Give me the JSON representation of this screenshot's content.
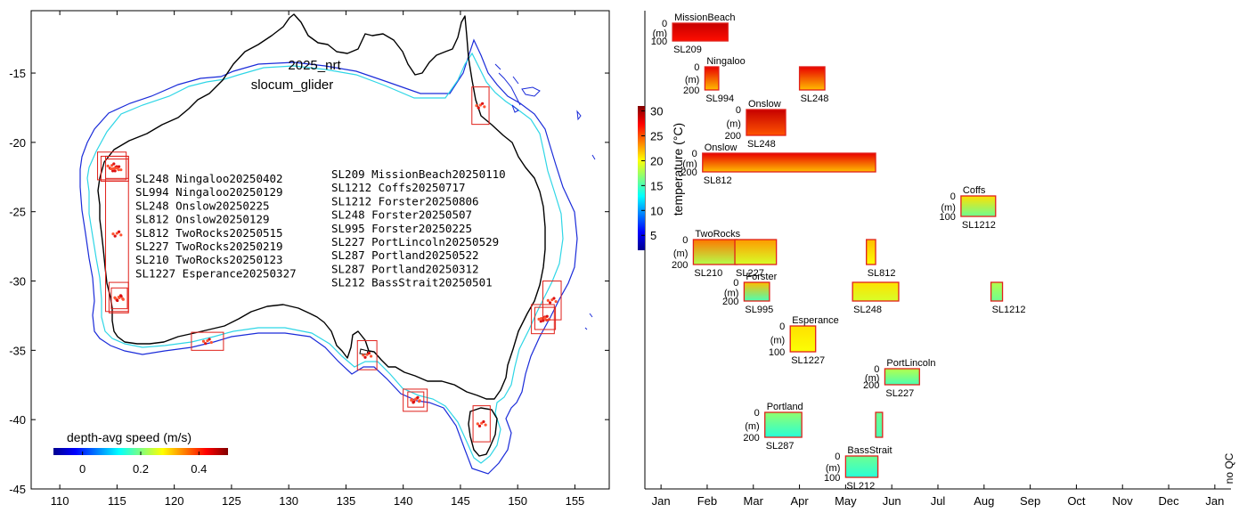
{
  "chart_data": [
    {
      "type": "map",
      "title_lines": [
        "2025_nrt",
        "slocum_glider"
      ],
      "x_ticks": [
        "110",
        "115",
        "120",
        "125",
        "130",
        "135",
        "140",
        "145",
        "150",
        "155"
      ],
      "x_tick_values": [
        110,
        115,
        120,
        125,
        130,
        135,
        140,
        145,
        150,
        155
      ],
      "y_ticks": [
        "-15",
        "-20",
        "-25",
        "-30",
        "-35",
        "-40",
        "-45"
      ],
      "y_tick_values": [
        -15,
        -20,
        -25,
        -30,
        -35,
        -40,
        -45
      ],
      "xlim": [
        107.5,
        158
      ],
      "ylim": [
        -45,
        -10.5
      ],
      "colorbar": {
        "label": "depth-avg speed (m/s)",
        "ticks": [
          "0",
          "0.2",
          "0.4"
        ],
        "tick_values": [
          0,
          0.2,
          0.4
        ],
        "range": [
          -0.1,
          0.5
        ],
        "cmap": "jet"
      },
      "legend_left": [
        "SL248 Ningaloo20250402",
        "SL994 Ningaloo20250129",
        "SL248 Onslow20250225",
        "SL812 Onslow20250129",
        "SL812 TwoRocks20250515",
        "SL227 TwoRocks20250219",
        "SL210 TwoRocks20250123",
        "SL1227 Esperance20250327"
      ],
      "legend_right": [
        "SL209 MissionBeach20250110",
        "SL1212 Coffs20250717",
        "SL1212 Forster20250806",
        "SL248 Forster20250507",
        "SL995 Forster20250225",
        "SL227 PortLincoln20250529",
        "SL287 Portland20250522",
        "SL287 Portland20250312",
        "SL212 BassStrait20250501"
      ],
      "deployment_boxes_lonlat": [
        {
          "site": "Ningaloo",
          "lon": [
            113.3,
            115.8
          ],
          "lat": [
            -22.7,
            -20.7
          ]
        },
        {
          "site": "Ningaloo/Onslow",
          "lon": [
            113.6,
            116.0
          ],
          "lat": [
            -22.8,
            -21.0
          ]
        },
        {
          "site": "Onslow",
          "lon": [
            114.0,
            116.0
          ],
          "lat": [
            -22.6,
            -21.2
          ]
        },
        {
          "site": "Onslow-TwoRocks",
          "lon": [
            114.0,
            116.0
          ],
          "lat": [
            -32.2,
            -21.0
          ]
        },
        {
          "site": "TwoRocks",
          "lon": [
            114.3,
            116.0
          ],
          "lat": [
            -32.3,
            -30.1
          ]
        },
        {
          "site": "TwoRocks",
          "lon": [
            114.5,
            115.9
          ],
          "lat": [
            -32.0,
            -30.5
          ]
        },
        {
          "site": "Esperance",
          "lon": [
            121.5,
            124.3
          ],
          "lat": [
            -35.0,
            -33.7
          ]
        },
        {
          "site": "PortLincoln",
          "lon": [
            136.0,
            137.7
          ],
          "lat": [
            -36.4,
            -34.3
          ]
        },
        {
          "site": "Portland",
          "lon": [
            140.0,
            142.1
          ],
          "lat": [
            -39.4,
            -37.8
          ]
        },
        {
          "site": "Portland",
          "lon": [
            140.4,
            141.8
          ],
          "lat": [
            -39.1,
            -38.0
          ]
        },
        {
          "site": "BassStrait",
          "lon": [
            146.1,
            147.6
          ],
          "lat": [
            -41.6,
            -39.0
          ]
        },
        {
          "site": "MissionBeach",
          "lon": [
            146.0,
            147.5
          ],
          "lat": [
            -18.7,
            -16.0
          ]
        },
        {
          "site": "Forster",
          "lon": [
            151.2,
            153.2
          ],
          "lat": [
            -33.8,
            -31.7
          ]
        },
        {
          "site": "Forster",
          "lon": [
            151.5,
            153.3
          ],
          "lat": [
            -33.5,
            -31.9
          ]
        },
        {
          "site": "Coffs",
          "lon": [
            152.2,
            153.8
          ],
          "lat": [
            -32.8,
            -30.0
          ]
        }
      ]
    },
    {
      "type": "timeline",
      "x_ticks": [
        "Jan",
        "Feb",
        "Mar",
        "Apr",
        "May",
        "Jun",
        "Jul",
        "Aug",
        "Sep",
        "Oct",
        "Nov",
        "Dec",
        "Jan"
      ],
      "x_tick_months": [
        0,
        1,
        2,
        3,
        4,
        5,
        6,
        7,
        8,
        9,
        10,
        11,
        12
      ],
      "xlim_months": [
        -0.35,
        12.35
      ],
      "no_qc_label": "no QC",
      "colorbar": {
        "label": "temperature (°C)",
        "ticks": [
          "5",
          "10",
          "15",
          "20",
          "25",
          "30"
        ],
        "tick_values": [
          5,
          10,
          15,
          20,
          25,
          30
        ],
        "range": [
          2,
          31
        ],
        "cmap": "jet"
      },
      "depth_unit": "(m)",
      "deployments": [
        {
          "site": "MissionBeach",
          "glider": "SL209",
          "start_month": 0.25,
          "end_month": 1.45,
          "row": 0,
          "depth_max_label": "100",
          "depth_top_label": "0",
          "temp_surface": 29,
          "temp_bottom": 27,
          "show_site": true
        },
        {
          "site": "Ningaloo",
          "glider": "SL994",
          "start_month": 0.95,
          "end_month": 1.25,
          "row": 1,
          "depth_max_label": "200",
          "depth_top_label": "0",
          "temp_surface": 28,
          "temp_bottom": 22,
          "show_site": true
        },
        {
          "site": "",
          "glider": "SL248",
          "start_month": 3.0,
          "end_month": 3.55,
          "row": 1,
          "depth_max_label": "",
          "depth_top_label": "",
          "temp_surface": 28,
          "temp_bottom": 22,
          "show_site": false
        },
        {
          "site": "Onslow",
          "glider": "SL248",
          "start_month": 1.85,
          "end_month": 2.7,
          "row": 2,
          "depth_max_label": "200",
          "depth_top_label": "0",
          "temp_surface": 29,
          "temp_bottom": 25,
          "show_site": true
        },
        {
          "site": "Onslow",
          "glider": "SL812",
          "start_month": 0.9,
          "end_month": 4.65,
          "row": 3,
          "depth_max_label": "200",
          "depth_top_label": "0",
          "temp_surface": 28,
          "temp_bottom": 22,
          "show_site": true
        },
        {
          "site": "Coffs",
          "glider": "SL1212",
          "start_month": 6.5,
          "end_month": 7.25,
          "row": 4,
          "depth_max_label": "100",
          "depth_top_label": "0",
          "temp_surface": 21,
          "temp_bottom": 16,
          "show_site": true
        },
        {
          "site": "TwoRocks",
          "glider": "SL210",
          "start_month": 0.7,
          "end_month": 1.65,
          "row": 5,
          "depth_max_label": "200",
          "depth_top_label": "0",
          "temp_surface": 24,
          "temp_bottom": 18,
          "show_site": true
        },
        {
          "site": "",
          "glider": "SL227",
          "start_month": 1.6,
          "end_month": 2.5,
          "row": 5,
          "depth_max_label": "",
          "depth_top_label": "",
          "temp_surface": 23,
          "temp_bottom": 19,
          "show_site": false
        },
        {
          "site": "",
          "glider": "SL812",
          "start_month": 4.45,
          "end_month": 4.65,
          "row": 5,
          "depth_max_label": "",
          "depth_top_label": "",
          "temp_surface": 22,
          "temp_bottom": 20,
          "show_site": false
        },
        {
          "site": "Forster",
          "glider": "SL995",
          "start_month": 1.8,
          "end_month": 2.35,
          "row": 6,
          "depth_max_label": "200",
          "depth_top_label": "0",
          "temp_surface": 22,
          "temp_bottom": 15,
          "show_site": true
        },
        {
          "site": "",
          "glider": "SL248",
          "start_month": 4.15,
          "end_month": 5.15,
          "row": 6,
          "depth_max_label": "",
          "depth_top_label": "",
          "temp_surface": 21,
          "temp_bottom": 19,
          "show_site": false
        },
        {
          "site": "",
          "glider": "SL1212",
          "start_month": 7.15,
          "end_month": 7.4,
          "row": 6,
          "depth_max_label": "",
          "depth_top_label": "",
          "temp_surface": 18,
          "temp_bottom": 16,
          "show_site": false
        },
        {
          "site": "Esperance",
          "glider": "SL1227",
          "start_month": 2.8,
          "end_month": 3.35,
          "row": 7,
          "depth_max_label": "100",
          "depth_top_label": "0",
          "temp_surface": 21,
          "temp_bottom": 20,
          "show_site": true
        },
        {
          "site": "PortLincoln",
          "glider": "SL227",
          "start_month": 4.85,
          "end_month": 5.6,
          "row": 8,
          "depth_max_label": "200",
          "depth_top_label": "0",
          "temp_surface": 18,
          "temp_bottom": 15,
          "show_site": true
        },
        {
          "site": "Portland",
          "glider": "SL287",
          "start_month": 2.25,
          "end_month": 3.05,
          "row": 9,
          "depth_max_label": "200",
          "depth_top_label": "0",
          "temp_surface": 17,
          "temp_bottom": 14,
          "show_site": true
        },
        {
          "site": "",
          "glider": "",
          "start_month": 4.65,
          "end_month": 4.8,
          "row": 9,
          "depth_max_label": "",
          "depth_top_label": "",
          "temp_surface": 16,
          "temp_bottom": 15,
          "show_site": false
        },
        {
          "site": "BassStrait",
          "glider": "SL212",
          "start_month": 4.0,
          "end_month": 4.7,
          "row": 10,
          "depth_max_label": "100",
          "depth_top_label": "0",
          "temp_surface": 16,
          "temp_bottom": 14,
          "show_site": true
        }
      ]
    }
  ]
}
